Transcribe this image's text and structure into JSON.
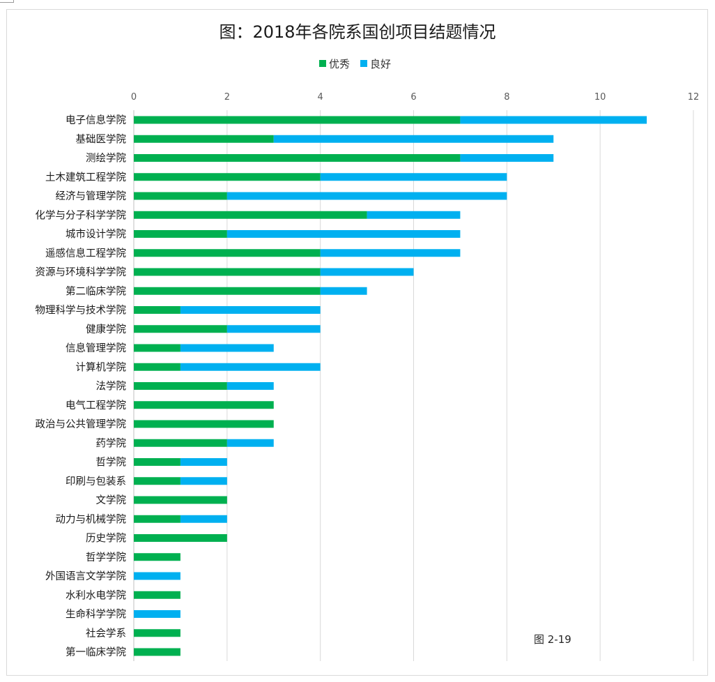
{
  "chart_data": {
    "type": "bar",
    "orientation": "horizontal",
    "stacked": true,
    "title": "图：2018年各院系国创项目结题情况",
    "xlabel": "",
    "ylabel": "",
    "xlim": [
      0,
      12
    ],
    "x_ticks": [
      0,
      2,
      4,
      6,
      8,
      10,
      12
    ],
    "x_axis_position": "top",
    "grid": "vertical",
    "legend_position": "top",
    "categories": [
      "电子信息学院",
      "基础医学院",
      "测绘学院",
      "土木建筑工程学院",
      "经济与管理学院",
      "化学与分子科学学院",
      "城市设计学院",
      "遥感信息工程学院",
      "资源与环境科学学院",
      "第二临床学院",
      "物理科学与技术学院",
      "健康学院",
      "信息管理学院",
      "计算机学院",
      "法学院",
      "电气工程学院",
      "政治与公共管理学院",
      "药学院",
      "哲学院",
      "印刷与包装系",
      "文学院",
      "动力与机械学院",
      "历史学院",
      "哲学学院",
      "外国语言文学学院",
      "水利水电学院",
      "生命科学学院",
      "社会学系",
      "第一临床学院"
    ],
    "series": [
      {
        "name": "优秀",
        "color": "#00b050",
        "values": [
          7,
          3,
          7,
          4,
          2,
          5,
          2,
          4,
          4,
          4,
          1,
          2,
          1,
          1,
          2,
          3,
          3,
          2,
          1,
          1,
          2,
          1,
          2,
          1,
          0,
          1,
          0,
          1,
          1
        ]
      },
      {
        "name": "良好",
        "color": "#00b0f0",
        "values": [
          4,
          6,
          2,
          4,
          6,
          2,
          5,
          3,
          2,
          1,
          3,
          2,
          2,
          3,
          1,
          0,
          0,
          1,
          1,
          1,
          0,
          1,
          0,
          0,
          1,
          0,
          1,
          0,
          0
        ]
      }
    ],
    "annotation": "图 2-19"
  }
}
